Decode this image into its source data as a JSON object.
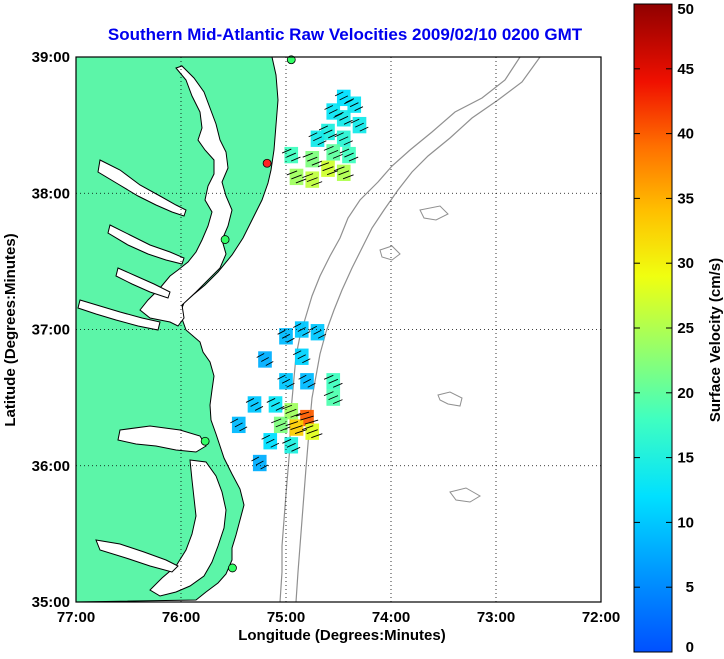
{
  "chart_data": {
    "type": "heatmap",
    "title": "Southern Mid-Atlantic Raw Velocities 2009/02/10 0200 GMT",
    "xlabel": "Longitude (Degrees:Minutes)",
    "ylabel": "Latitude (Degrees:Minutes)",
    "xlim": [
      -77,
      -72
    ],
    "ylim": [
      35,
      39
    ],
    "x_ticks": [
      "77:00",
      "76:00",
      "75:00",
      "74:00",
      "73:00",
      "72:00"
    ],
    "y_ticks": [
      "35:00",
      "36:00",
      "37:00",
      "38:00",
      "39:00"
    ],
    "grid": true,
    "colorbar": {
      "label": "Surface Velocity (cm/s)",
      "range": [
        0,
        50
      ],
      "ticks": [
        "0",
        "5",
        "10",
        "15",
        "20",
        "25",
        "30",
        "35",
        "40",
        "45",
        "50"
      ]
    },
    "velocity_cells": [
      {
        "lon": -74.45,
        "lat": 38.7,
        "speed": 12
      },
      {
        "lon": -74.35,
        "lat": 38.65,
        "speed": 13
      },
      {
        "lon": -74.55,
        "lat": 38.6,
        "speed": 13
      },
      {
        "lon": -74.45,
        "lat": 38.55,
        "speed": 14
      },
      {
        "lon": -74.3,
        "lat": 38.5,
        "speed": 14
      },
      {
        "lon": -74.6,
        "lat": 38.45,
        "speed": 15
      },
      {
        "lon": -74.45,
        "lat": 38.4,
        "speed": 16
      },
      {
        "lon": -74.7,
        "lat": 38.4,
        "speed": 14
      },
      {
        "lon": -74.55,
        "lat": 38.3,
        "speed": 20
      },
      {
        "lon": -74.4,
        "lat": 38.28,
        "speed": 18
      },
      {
        "lon": -74.75,
        "lat": 38.25,
        "speed": 22
      },
      {
        "lon": -74.6,
        "lat": 38.18,
        "speed": 27
      },
      {
        "lon": -74.45,
        "lat": 38.15,
        "speed": 25
      },
      {
        "lon": -74.9,
        "lat": 38.12,
        "speed": 24
      },
      {
        "lon": -74.75,
        "lat": 38.1,
        "speed": 26
      },
      {
        "lon": -74.95,
        "lat": 38.28,
        "speed": 18
      },
      {
        "lon": -74.85,
        "lat": 37.0,
        "speed": 10
      },
      {
        "lon": -74.7,
        "lat": 36.98,
        "speed": 10
      },
      {
        "lon": -75.0,
        "lat": 36.95,
        "speed": 9
      },
      {
        "lon": -75.2,
        "lat": 36.78,
        "speed": 8
      },
      {
        "lon": -74.85,
        "lat": 36.8,
        "speed": 11
      },
      {
        "lon": -75.0,
        "lat": 36.62,
        "speed": 10
      },
      {
        "lon": -74.8,
        "lat": 36.62,
        "speed": 9
      },
      {
        "lon": -74.55,
        "lat": 36.62,
        "speed": 18
      },
      {
        "lon": -74.55,
        "lat": 36.5,
        "speed": 19
      },
      {
        "lon": -75.3,
        "lat": 36.45,
        "speed": 10
      },
      {
        "lon": -75.1,
        "lat": 36.45,
        "speed": 13
      },
      {
        "lon": -75.45,
        "lat": 36.3,
        "speed": 9
      },
      {
        "lon": -74.95,
        "lat": 36.4,
        "speed": 24
      },
      {
        "lon": -74.8,
        "lat": 36.35,
        "speed": 40
      },
      {
        "lon": -74.9,
        "lat": 36.28,
        "speed": 33
      },
      {
        "lon": -75.05,
        "lat": 36.3,
        "speed": 22
      },
      {
        "lon": -74.75,
        "lat": 36.25,
        "speed": 28
      },
      {
        "lon": -75.15,
        "lat": 36.18,
        "speed": 12
      },
      {
        "lon": -74.95,
        "lat": 36.15,
        "speed": 15
      },
      {
        "lon": -75.25,
        "lat": 36.02,
        "speed": 8
      }
    ],
    "stations": [
      {
        "lon": -74.95,
        "lat": 38.98,
        "color": "#33ff66"
      },
      {
        "lon": -75.18,
        "lat": 38.22,
        "color": "#ff2222"
      },
      {
        "lon": -75.58,
        "lat": 37.66,
        "color": "#33ff66"
      },
      {
        "lon": -75.77,
        "lat": 36.18,
        "color": "#33ff66"
      },
      {
        "lon": -75.51,
        "lat": 35.25,
        "color": "#33ff66"
      }
    ],
    "colors": {
      "land": "#5cf5a8",
      "coast": "#000000",
      "bathymetry": "#909090",
      "grid": "#000000",
      "title": "#0000ee"
    }
  }
}
